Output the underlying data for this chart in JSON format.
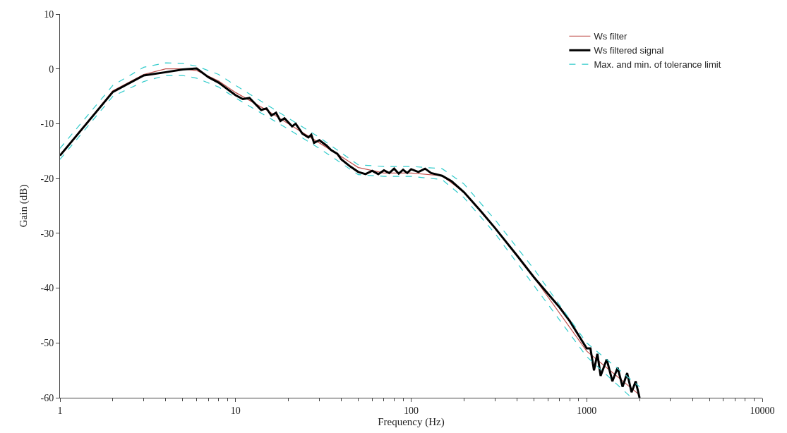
{
  "chart_data": {
    "type": "line",
    "xlabel": "Frequency (Hz)",
    "ylabel": "Gain (dB)",
    "log": "x",
    "legend": "top right",
    "marker": "none",
    "xlim": [
      1,
      10000
    ],
    "xticks": [
      1,
      10,
      100,
      1000,
      10000
    ],
    "ylim": [
      -60,
      10
    ],
    "yticks": [
      10,
      0,
      -10,
      -20,
      -30,
      -40,
      -50,
      -60
    ],
    "series": [
      {
        "name": "Ws filter",
        "color": "#c0504d",
        "line_style": "solid",
        "x": [
          1,
          2,
          3,
          4,
          5,
          6,
          8,
          10,
          15,
          20,
          30,
          40,
          50,
          70,
          100,
          150,
          200,
          300,
          500,
          1000,
          2000
        ],
        "values": [
          -15.8,
          -4,
          -1,
          0,
          0,
          -0.3,
          -2.2,
          -4.3,
          -7.5,
          -10,
          -13.5,
          -16,
          -18,
          -19,
          -19,
          -19.5,
          -22.5,
          -29,
          -38,
          -51.5,
          -59.5
        ]
      },
      {
        "name": "Ws filtered signal",
        "color": "#000000",
        "line_style": "solid",
        "x": [
          1,
          2,
          3,
          4,
          5,
          6,
          7,
          8,
          10,
          11,
          12,
          14,
          15,
          16,
          17,
          18,
          19,
          21,
          22,
          24,
          26,
          27,
          28,
          30,
          33,
          35,
          38,
          40,
          45,
          50,
          55,
          60,
          65,
          70,
          75,
          80,
          85,
          90,
          95,
          100,
          110,
          120,
          130,
          150,
          170,
          200,
          250,
          300,
          400,
          500,
          600,
          700,
          800,
          1000,
          1050,
          1100,
          1150,
          1200,
          1300,
          1400,
          1500,
          1600,
          1700,
          1800,
          1900,
          2000
        ],
        "values": [
          -15.8,
          -4.2,
          -1.2,
          -0.6,
          -0.1,
          0.1,
          -1.5,
          -2.5,
          -4.8,
          -5.5,
          -5.3,
          -7.5,
          -7.2,
          -8.5,
          -8,
          -9.5,
          -9,
          -10.5,
          -10,
          -11.8,
          -12.5,
          -12,
          -13.5,
          -13,
          -14,
          -14.8,
          -15.5,
          -16.5,
          -17.8,
          -18.8,
          -19.2,
          -18.6,
          -19.2,
          -18.5,
          -19,
          -18.2,
          -19.1,
          -18.4,
          -19,
          -18.3,
          -18.8,
          -18.2,
          -19,
          -19.5,
          -20.5,
          -22.5,
          -26,
          -29,
          -34,
          -38,
          -41,
          -43.5,
          -46,
          -51,
          -51,
          -55,
          -52,
          -56,
          -53,
          -57,
          -54.5,
          -58,
          -55.5,
          -59,
          -57,
          -60
        ]
      },
      {
        "name": "Max. and min. of tolerance limit",
        "color": "#33cccc",
        "line_style": "dashed",
        "x": [
          1,
          2,
          3,
          4,
          5,
          6,
          8,
          10,
          20,
          30,
          50,
          70,
          100,
          150,
          200,
          300,
          500,
          1000,
          2000
        ],
        "values": [
          -14.5,
          -3,
          0.3,
          1.1,
          1,
          0.5,
          -1,
          -3,
          -9,
          -12.5,
          -17.5,
          -17.8,
          -17.8,
          -18.2,
          -21,
          -27.5,
          -36.5,
          -50,
          -58
        ]
      },
      {
        "color": "#33cccc",
        "line_style": "dashed",
        "x": [
          1,
          2,
          3,
          4,
          5,
          6,
          8,
          10,
          20,
          30,
          50,
          70,
          100,
          150,
          200,
          300,
          500,
          1000,
          1800
        ],
        "values": [
          -16.5,
          -5,
          -2.3,
          -1.2,
          -1.2,
          -1.7,
          -3.3,
          -5.3,
          -11,
          -14.5,
          -19.3,
          -19.6,
          -19.6,
          -20.2,
          -23.5,
          -30,
          -39.5,
          -52.5,
          -60
        ]
      }
    ]
  }
}
